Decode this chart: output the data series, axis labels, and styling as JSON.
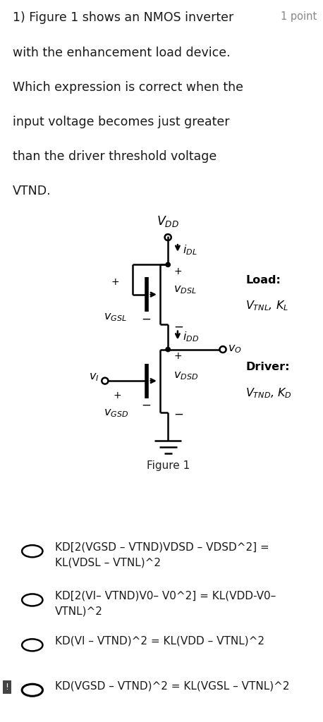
{
  "background_color": "#ffffff",
  "title_text": "1) Figure 1 shows an NMOS inverter",
  "title_line2": "with the enhancement load device.",
  "title_line3": "Which expression is correct when the",
  "title_line4": "input voltage becomes just greater",
  "title_line5": "than the driver threshold voltage",
  "title_line6": "VTND.",
  "point_text": "1 point",
  "figure_caption": "Figure 1",
  "choices": [
    "KD[2(VGSD – VTND)VDSD – VDSD^2] =\nKL(VDSL – VTNL)^2",
    "KD[2(VI– VTND)V0– V0^2] = KL(VDD-V0–\nVTNL)^2",
    "KD(VI – VTND)^2 = KL(VDD – VTNL)^2",
    "KD(VGSD – VTND)^2 = KL(VGSL – VTNL)^2"
  ],
  "selected_choice": 3,
  "lw": 1.8,
  "lc": "#000000"
}
